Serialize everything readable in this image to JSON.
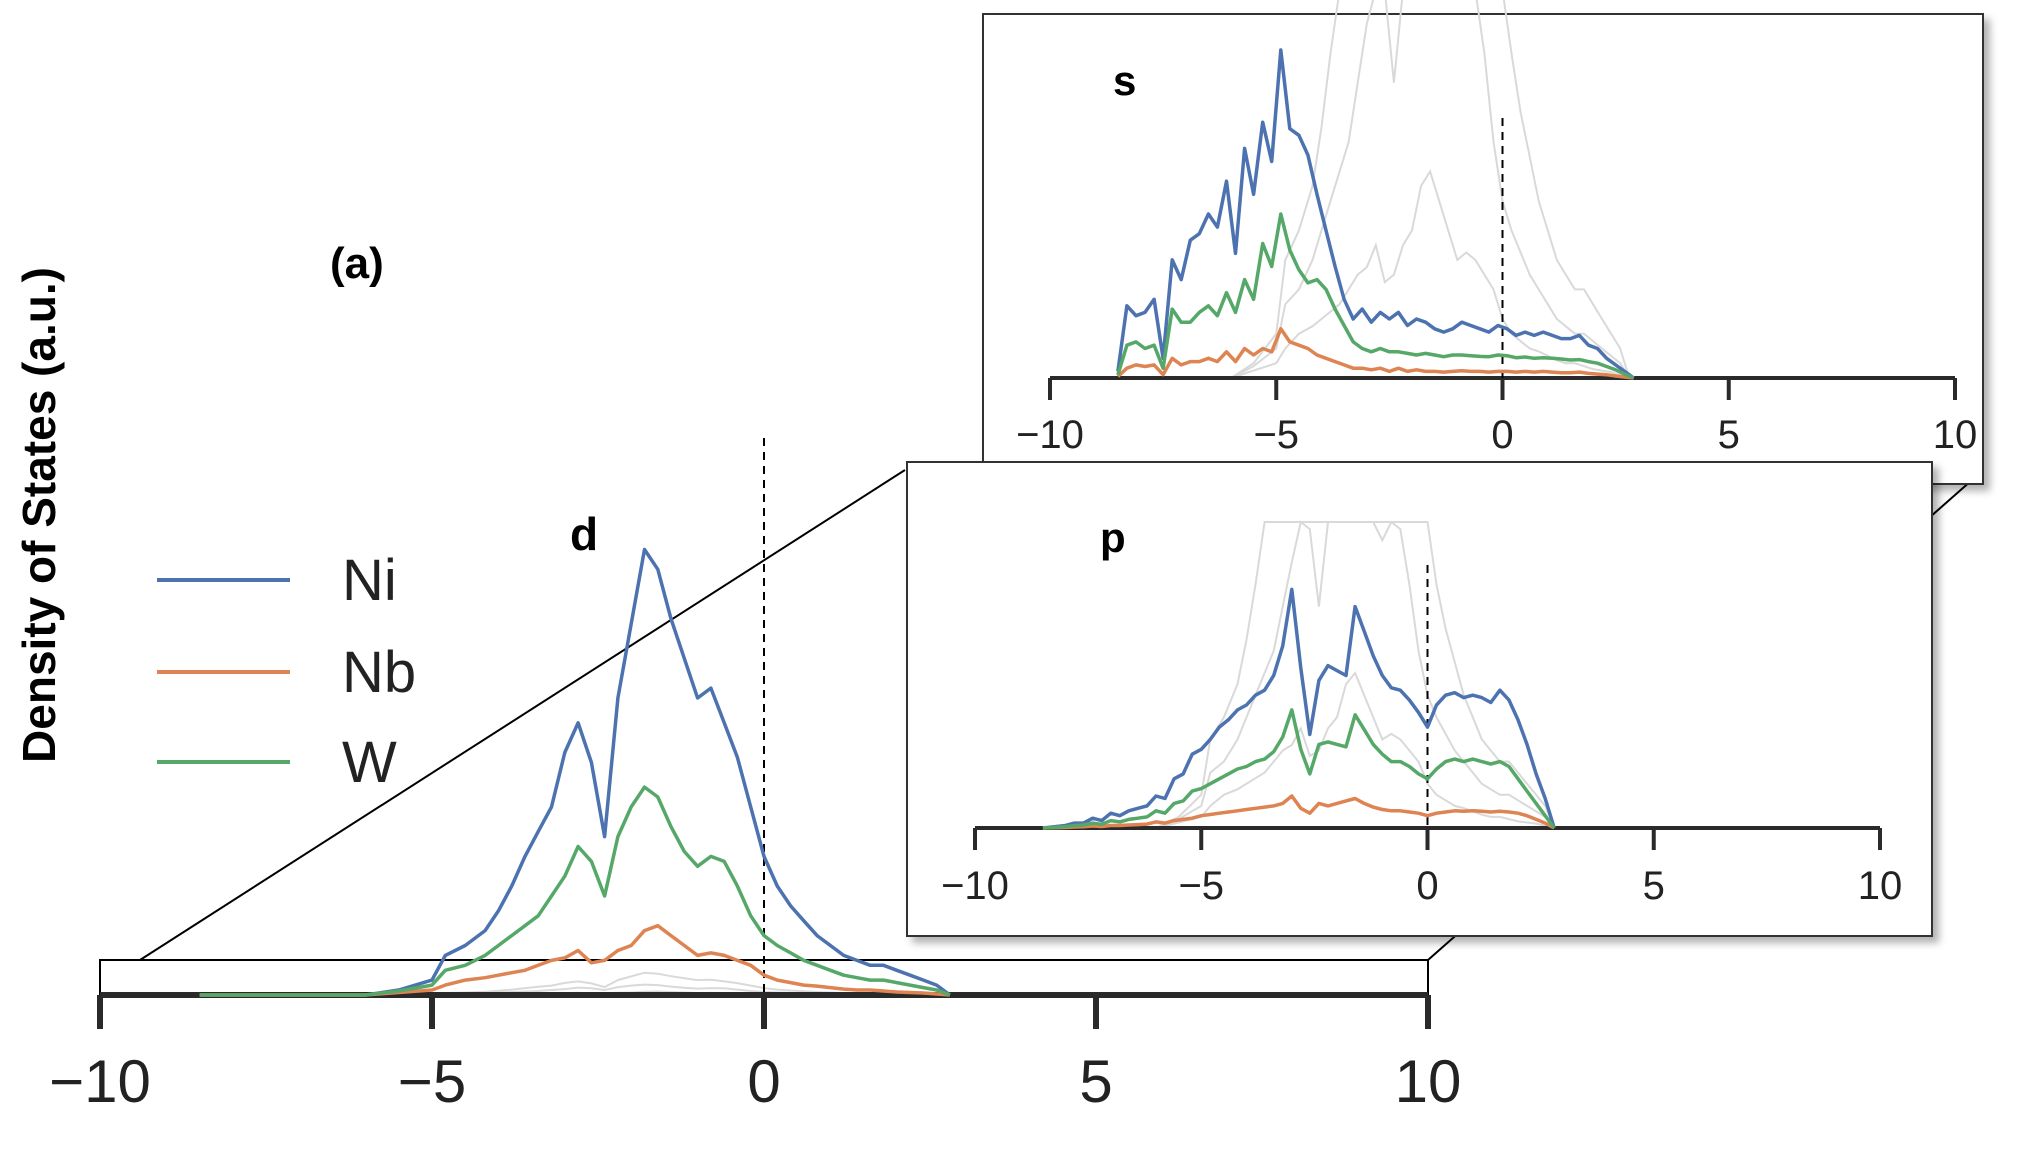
{
  "figure": {
    "panel_label": "(a)",
    "ylabel": "Density of States (a.u.)",
    "legend": [
      {
        "name": "Ni",
        "color": "#4c72b0"
      },
      {
        "name": "Nb",
        "color": "#dd8452"
      },
      {
        "name": "W",
        "color": "#55a868"
      }
    ]
  },
  "chart_data": [
    {
      "id": "main",
      "type": "line",
      "title": "d",
      "xlabel": "",
      "ylabel": "Density of States (a.u.)",
      "xlim": [
        -10,
        10
      ],
      "ylim": [
        0,
        1.0
      ],
      "xticks": [
        -10,
        -5,
        0,
        5,
        10
      ],
      "xtick_labels": [
        "−10",
        "−5",
        "0",
        "5",
        "10"
      ],
      "fermi_level": 0,
      "grid": false,
      "legend_position": "left",
      "x": [
        -8.5,
        -8,
        -7.5,
        -7,
        -6.5,
        -6,
        -5.5,
        -5,
        -4.8,
        -4.5,
        -4.2,
        -4,
        -3.8,
        -3.6,
        -3.4,
        -3.2,
        -3.0,
        -2.8,
        -2.6,
        -2.4,
        -2.2,
        -2.0,
        -1.8,
        -1.6,
        -1.4,
        -1.2,
        -1.0,
        -0.8,
        -0.6,
        -0.4,
        -0.2,
        0,
        0.2,
        0.4,
        0.6,
        0.8,
        1.0,
        1.2,
        1.4,
        1.6,
        1.8,
        2.0,
        2.2,
        2.4,
        2.6,
        2.8
      ],
      "series": [
        {
          "name": "Ni",
          "color": "#4c72b0",
          "values": [
            0,
            0,
            0,
            0,
            0,
            0,
            0.01,
            0.03,
            0.08,
            0.1,
            0.13,
            0.17,
            0.22,
            0.28,
            0.33,
            0.38,
            0.49,
            0.55,
            0.47,
            0.32,
            0.6,
            0.75,
            0.9,
            0.86,
            0.76,
            0.68,
            0.6,
            0.62,
            0.55,
            0.48,
            0.38,
            0.28,
            0.22,
            0.18,
            0.15,
            0.12,
            0.1,
            0.08,
            0.07,
            0.06,
            0.06,
            0.05,
            0.04,
            0.03,
            0.02,
            0
          ]
        },
        {
          "name": "Nb",
          "color": "#dd8452",
          "values": [
            0,
            0,
            0,
            0,
            0,
            0,
            0.005,
            0.01,
            0.02,
            0.03,
            0.035,
            0.04,
            0.045,
            0.05,
            0.06,
            0.07,
            0.075,
            0.09,
            0.065,
            0.07,
            0.09,
            0.1,
            0.13,
            0.14,
            0.12,
            0.1,
            0.08,
            0.085,
            0.08,
            0.07,
            0.06,
            0.04,
            0.03,
            0.025,
            0.02,
            0.018,
            0.015,
            0.012,
            0.01,
            0.01,
            0.008,
            0.006,
            0.005,
            0.004,
            0.002,
            0
          ]
        },
        {
          "name": "W",
          "color": "#55a868",
          "values": [
            0,
            0,
            0,
            0,
            0,
            0,
            0.008,
            0.02,
            0.05,
            0.06,
            0.08,
            0.1,
            0.12,
            0.14,
            0.16,
            0.2,
            0.24,
            0.3,
            0.27,
            0.2,
            0.32,
            0.38,
            0.42,
            0.4,
            0.34,
            0.29,
            0.26,
            0.28,
            0.27,
            0.22,
            0.16,
            0.12,
            0.1,
            0.085,
            0.07,
            0.06,
            0.05,
            0.04,
            0.035,
            0.03,
            0.03,
            0.025,
            0.02,
            0.015,
            0.01,
            0
          ]
        }
      ]
    },
    {
      "id": "inset-s",
      "type": "line",
      "title": "s",
      "xlim": [
        -10,
        10
      ],
      "ylim": [
        0,
        1.0
      ],
      "xticks": [
        -10,
        -5,
        0,
        5,
        10
      ],
      "xtick_labels": [
        "−10",
        "−5",
        "0",
        "5",
        "10"
      ],
      "fermi_level": 0,
      "grid": false,
      "x": [
        -8.5,
        -8.3,
        -8.1,
        -7.9,
        -7.7,
        -7.5,
        -7.3,
        -7.1,
        -6.9,
        -6.7,
        -6.5,
        -6.3,
        -6.1,
        -5.9,
        -5.7,
        -5.5,
        -5.3,
        -5.1,
        -4.9,
        -4.7,
        -4.5,
        -4.3,
        -4.1,
        -3.9,
        -3.7,
        -3.5,
        -3.3,
        -3.1,
        -2.9,
        -2.7,
        -2.5,
        -2.3,
        -2.1,
        -1.9,
        -1.7,
        -1.5,
        -1.3,
        -1.1,
        -0.9,
        -0.7,
        -0.5,
        -0.3,
        -0.1,
        0.1,
        0.3,
        0.5,
        0.7,
        0.9,
        1.1,
        1.3,
        1.5,
        1.7,
        1.9,
        2.1,
        2.3,
        2.5,
        2.7,
        2.9
      ],
      "series": [
        {
          "name": "Ni",
          "color": "#4c72b0",
          "values": [
            0.02,
            0.22,
            0.19,
            0.2,
            0.24,
            0.06,
            0.36,
            0.3,
            0.42,
            0.44,
            0.5,
            0.46,
            0.6,
            0.38,
            0.7,
            0.56,
            0.78,
            0.66,
            1.0,
            0.76,
            0.74,
            0.68,
            0.56,
            0.45,
            0.34,
            0.24,
            0.18,
            0.21,
            0.17,
            0.2,
            0.18,
            0.2,
            0.16,
            0.18,
            0.17,
            0.15,
            0.14,
            0.15,
            0.17,
            0.16,
            0.15,
            0.14,
            0.16,
            0.15,
            0.13,
            0.14,
            0.13,
            0.14,
            0.13,
            0.12,
            0.12,
            0.13,
            0.1,
            0.09,
            0.06,
            0.04,
            0.02,
            0
          ]
        },
        {
          "name": "Nb",
          "color": "#dd8452",
          "values": [
            0.005,
            0.03,
            0.04,
            0.035,
            0.04,
            0.01,
            0.06,
            0.04,
            0.05,
            0.05,
            0.06,
            0.05,
            0.08,
            0.05,
            0.09,
            0.07,
            0.09,
            0.08,
            0.15,
            0.11,
            0.1,
            0.09,
            0.07,
            0.06,
            0.05,
            0.04,
            0.03,
            0.03,
            0.025,
            0.03,
            0.02,
            0.03,
            0.02,
            0.025,
            0.02,
            0.02,
            0.018,
            0.02,
            0.022,
            0.02,
            0.02,
            0.018,
            0.02,
            0.02,
            0.018,
            0.02,
            0.018,
            0.02,
            0.018,
            0.016,
            0.016,
            0.018,
            0.014,
            0.012,
            0.01,
            0.006,
            0.003,
            0
          ]
        },
        {
          "name": "W",
          "color": "#55a868",
          "values": [
            0.01,
            0.1,
            0.11,
            0.09,
            0.1,
            0.03,
            0.21,
            0.17,
            0.17,
            0.2,
            0.22,
            0.19,
            0.26,
            0.2,
            0.3,
            0.24,
            0.41,
            0.34,
            0.5,
            0.39,
            0.33,
            0.29,
            0.3,
            0.27,
            0.21,
            0.16,
            0.11,
            0.09,
            0.08,
            0.09,
            0.08,
            0.08,
            0.075,
            0.07,
            0.075,
            0.07,
            0.065,
            0.07,
            0.07,
            0.068,
            0.066,
            0.065,
            0.07,
            0.068,
            0.062,
            0.064,
            0.06,
            0.062,
            0.06,
            0.058,
            0.055,
            0.056,
            0.05,
            0.045,
            0.035,
            0.025,
            0.012,
            0
          ]
        }
      ]
    },
    {
      "id": "inset-p",
      "type": "line",
      "title": "p",
      "xlim": [
        -10,
        10
      ],
      "ylim": [
        0,
        1.0
      ],
      "xticks": [
        -10,
        -5,
        0,
        5,
        10
      ],
      "xtick_labels": [
        "−10",
        "−5",
        "0",
        "5",
        "10"
      ],
      "fermi_level": 0,
      "grid": false,
      "x": [
        -8.5,
        -8.0,
        -7.8,
        -7.6,
        -7.4,
        -7.2,
        -7.0,
        -6.8,
        -6.6,
        -6.4,
        -6.2,
        -6.0,
        -5.8,
        -5.6,
        -5.4,
        -5.2,
        -5.0,
        -4.8,
        -4.6,
        -4.4,
        -4.2,
        -4.0,
        -3.8,
        -3.6,
        -3.4,
        -3.2,
        -3.0,
        -2.8,
        -2.6,
        -2.4,
        -2.2,
        -2.0,
        -1.8,
        -1.6,
        -1.4,
        -1.2,
        -1.0,
        -0.8,
        -0.6,
        -0.4,
        -0.2,
        0,
        0.2,
        0.4,
        0.6,
        0.8,
        1.0,
        1.2,
        1.4,
        1.6,
        1.8,
        2.0,
        2.2,
        2.4,
        2.6,
        2.8
      ],
      "series": [
        {
          "name": "Ni",
          "color": "#4c72b0",
          "values": [
            0,
            0.01,
            0.02,
            0.02,
            0.04,
            0.03,
            0.06,
            0.05,
            0.07,
            0.08,
            0.09,
            0.13,
            0.12,
            0.2,
            0.22,
            0.3,
            0.32,
            0.36,
            0.41,
            0.44,
            0.48,
            0.5,
            0.54,
            0.56,
            0.62,
            0.74,
            0.97,
            0.65,
            0.38,
            0.6,
            0.66,
            0.64,
            0.62,
            0.9,
            0.8,
            0.7,
            0.62,
            0.57,
            0.56,
            0.52,
            0.47,
            0.41,
            0.5,
            0.54,
            0.55,
            0.53,
            0.54,
            0.53,
            0.51,
            0.56,
            0.52,
            0.44,
            0.34,
            0.22,
            0.12,
            0
          ]
        },
        {
          "name": "Nb",
          "color": "#dd8452",
          "values": [
            0,
            0.002,
            0.004,
            0.005,
            0.008,
            0.006,
            0.01,
            0.01,
            0.012,
            0.014,
            0.016,
            0.025,
            0.02,
            0.03,
            0.035,
            0.04,
            0.05,
            0.055,
            0.06,
            0.065,
            0.07,
            0.075,
            0.08,
            0.085,
            0.09,
            0.1,
            0.13,
            0.08,
            0.06,
            0.1,
            0.09,
            0.1,
            0.11,
            0.12,
            0.1,
            0.085,
            0.075,
            0.07,
            0.07,
            0.065,
            0.06,
            0.05,
            0.06,
            0.065,
            0.07,
            0.068,
            0.07,
            0.068,
            0.065,
            0.068,
            0.065,
            0.06,
            0.05,
            0.035,
            0.02,
            0
          ]
        },
        {
          "name": "W",
          "color": "#55a868",
          "values": [
            0,
            0.005,
            0.01,
            0.012,
            0.02,
            0.015,
            0.03,
            0.025,
            0.035,
            0.04,
            0.045,
            0.07,
            0.06,
            0.1,
            0.11,
            0.15,
            0.16,
            0.18,
            0.2,
            0.22,
            0.24,
            0.25,
            0.27,
            0.28,
            0.31,
            0.37,
            0.48,
            0.32,
            0.22,
            0.34,
            0.35,
            0.34,
            0.33,
            0.46,
            0.4,
            0.34,
            0.3,
            0.27,
            0.27,
            0.25,
            0.22,
            0.2,
            0.24,
            0.27,
            0.28,
            0.27,
            0.28,
            0.27,
            0.26,
            0.27,
            0.25,
            0.2,
            0.15,
            0.1,
            0.05,
            0
          ]
        }
      ]
    }
  ]
}
